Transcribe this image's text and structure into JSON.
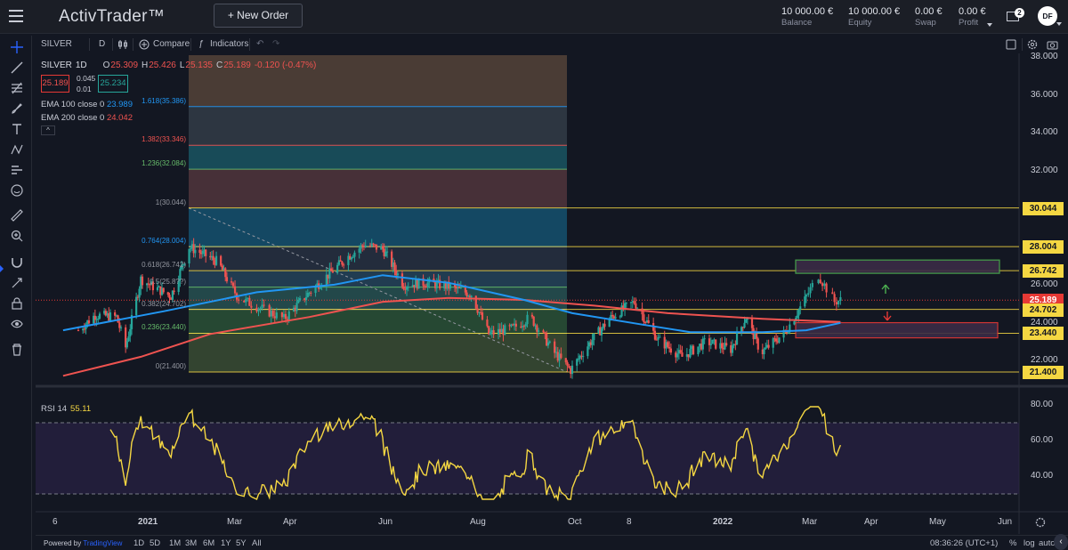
{
  "topbar": {
    "logo": "ActivTrader™",
    "new_order": "+ New Order",
    "balance_value": "10 000.00 €",
    "balance_label": "Balance",
    "equity_value": "10 000.00 €",
    "equity_label": "Equity",
    "swap_value": "0.00 €",
    "swap_label": "Swap",
    "profit_value": "0.00 €",
    "profit_label": "Profit",
    "mail_badge": "2",
    "avatar_initials": "DF"
  },
  "toolbar": {
    "symbol": "SILVER",
    "interval": "D",
    "compare_label": "Compare",
    "indicators_label": "Indicators"
  },
  "legend": {
    "symbol": "SILVER",
    "interval": "1D",
    "o_label": "O",
    "o": "25.309",
    "h_label": "H",
    "h": "25.426",
    "l_label": "L",
    "l": "25.135",
    "c_label": "C",
    "c": "25.189",
    "change": "-0.120 (-0.47%)",
    "sell_price": "25.189",
    "spread_top": "0.045",
    "spread_bottom": "0.01",
    "buy_price": "25.234",
    "ema100_label": "EMA 100 close 0",
    "ema100_value": "23.989",
    "ema200_label": "EMA 200 close 0",
    "ema200_value": "24.042",
    "collapse": "^"
  },
  "rsi": {
    "label": "RSI 14",
    "value": "55.11",
    "axis": [
      "80.00",
      "60.00",
      "40.00"
    ]
  },
  "fib_labels": [
    {
      "text": "1.618(35.386)",
      "color": "#2196f3",
      "price": 35.386
    },
    {
      "text": "1.382(33.346)",
      "color": "#ef5350",
      "price": 33.346
    },
    {
      "text": "1.236(32.084)",
      "color": "#66bb6a",
      "price": 32.084
    },
    {
      "text": "1(30.044)",
      "color": "#9598a1",
      "price": 30.044
    },
    {
      "text": "0.764(28.004)",
      "color": "#2196f3",
      "price": 28.004
    },
    {
      "text": "0.618(26.742)",
      "color": "#9598a1",
      "price": 26.742
    },
    {
      "text": "0.5(25.8??)",
      "color": "#9598a1",
      "price": 25.872
    },
    {
      "text": "0.382(24.702)",
      "color": "#9598a1",
      "price": 24.702
    },
    {
      "text": "0.236(23.440)",
      "color": "#66bb6a",
      "price": 23.44
    },
    {
      "text": "0(21.400)",
      "color": "#9598a1",
      "price": 21.4
    }
  ],
  "price_axis": [
    "38.000",
    "36.000",
    "34.000",
    "32.000",
    "26.000",
    "24.000",
    "22.000"
  ],
  "price_tags": [
    {
      "text": "30.044",
      "price": 30.044,
      "bg": "#f5d742",
      "fg": "#131722"
    },
    {
      "text": "28.004",
      "price": 28.004,
      "bg": "#f5d742",
      "fg": "#131722"
    },
    {
      "text": "26.742",
      "price": 26.742,
      "bg": "#f5d742",
      "fg": "#131722"
    },
    {
      "text": "25.189",
      "price": 25.189,
      "bg": "#e53935",
      "fg": "#ffffff"
    },
    {
      "text": "24.702",
      "price": 24.702,
      "bg": "#f5d742",
      "fg": "#131722"
    },
    {
      "text": "23.440",
      "price": 23.44,
      "bg": "#f5d742",
      "fg": "#131722"
    },
    {
      "text": "21.400",
      "price": 21.4,
      "bg": "#f5d742",
      "fg": "#131722"
    }
  ],
  "x_labels": [
    "6",
    "2021",
    "Mar",
    "Apr",
    "Jun",
    "Aug",
    "Oct",
    "8",
    "2022",
    "Mar",
    "Apr",
    "May",
    "Jun"
  ],
  "bottombar": {
    "powered_prefix": "Powered by ",
    "powered_brand": "TradingView",
    "ranges": [
      "1D",
      "5D",
      "1M",
      "3M",
      "6M",
      "1Y",
      "5Y",
      "All"
    ],
    "clock": "08:36:26 (UTC+1)",
    "pct": "%",
    "log": "log",
    "auto": "auto"
  },
  "chart_data": {
    "type": "candlestick",
    "ylim": [
      21.0,
      38.2
    ],
    "price_path_anchors": [
      {
        "date": "2020-11-20",
        "close": 23.6
      },
      {
        "date": "2020-12-01",
        "close": 24.4
      },
      {
        "date": "2020-12-15",
        "close": 24.3
      },
      {
        "date": "2020-12-21",
        "close": 22.7
      },
      {
        "date": "2020-12-31",
        "close": 26.3
      },
      {
        "date": "2021-01-08",
        "close": 25.9
      },
      {
        "date": "2021-01-20",
        "close": 25.4
      },
      {
        "date": "2021-02-01",
        "close": 28.0
      },
      {
        "date": "2021-02-20",
        "close": 27.2
      },
      {
        "date": "2021-03-05",
        "close": 25.3
      },
      {
        "date": "2021-03-30",
        "close": 24.2
      },
      {
        "date": "2021-04-15",
        "close": 25.6
      },
      {
        "date": "2021-05-10",
        "close": 27.5
      },
      {
        "date": "2021-05-20",
        "close": 28.1
      },
      {
        "date": "2021-06-01",
        "close": 27.9
      },
      {
        "date": "2021-06-15",
        "close": 26.0
      },
      {
        "date": "2021-06-30",
        "close": 26.1
      },
      {
        "date": "2021-07-15",
        "close": 25.9
      },
      {
        "date": "2021-07-30",
        "close": 25.5
      },
      {
        "date": "2021-08-10",
        "close": 23.4
      },
      {
        "date": "2021-08-25",
        "close": 23.7
      },
      {
        "date": "2021-09-05",
        "close": 24.3
      },
      {
        "date": "2021-09-20",
        "close": 22.4
      },
      {
        "date": "2021-09-30",
        "close": 21.5
      },
      {
        "date": "2021-10-10",
        "close": 22.7
      },
      {
        "date": "2021-10-25",
        "close": 24.2
      },
      {
        "date": "2021-11-10",
        "close": 25.1
      },
      {
        "date": "2021-11-25",
        "close": 23.1
      },
      {
        "date": "2021-12-10",
        "close": 22.2
      },
      {
        "date": "2021-12-25",
        "close": 23.0
      },
      {
        "date": "2022-01-10",
        "close": 22.6
      },
      {
        "date": "2022-01-20",
        "close": 24.3
      },
      {
        "date": "2022-01-30",
        "close": 22.4
      },
      {
        "date": "2022-02-15",
        "close": 23.5
      },
      {
        "date": "2022-02-28",
        "close": 25.2
      },
      {
        "date": "2022-03-07",
        "close": 26.5
      },
      {
        "date": "2022-03-15",
        "close": 25.1
      },
      {
        "date": "2022-03-18",
        "close": 25.19
      }
    ],
    "ema100_anchors": [
      {
        "date": "2020-11-10",
        "value": 23.6
      },
      {
        "date": "2021-01-15",
        "value": 24.6
      },
      {
        "date": "2021-03-15",
        "value": 25.6
      },
      {
        "date": "2021-05-01",
        "value": 26.0
      },
      {
        "date": "2021-06-01",
        "value": 26.5
      },
      {
        "date": "2021-07-15",
        "value": 26.1
      },
      {
        "date": "2021-09-01",
        "value": 25.2
      },
      {
        "date": "2021-10-01",
        "value": 24.5
      },
      {
        "date": "2021-11-15",
        "value": 23.9
      },
      {
        "date": "2021-12-15",
        "value": 23.5
      },
      {
        "date": "2022-01-31",
        "value": 23.5
      },
      {
        "date": "2022-03-01",
        "value": 23.6
      },
      {
        "date": "2022-03-18",
        "value": 23.99
      }
    ],
    "ema200_anchors": [
      {
        "date": "2020-11-10",
        "value": 21.2
      },
      {
        "date": "2020-12-31",
        "value": 22.2
      },
      {
        "date": "2021-02-15",
        "value": 23.4
      },
      {
        "date": "2021-04-15",
        "value": 24.3
      },
      {
        "date": "2021-06-01",
        "value": 25.1
      },
      {
        "date": "2021-07-15",
        "value": 25.3
      },
      {
        "date": "2021-09-01",
        "value": 25.2
      },
      {
        "date": "2021-10-15",
        "value": 24.9
      },
      {
        "date": "2021-12-01",
        "value": 24.5
      },
      {
        "date": "2022-01-31",
        "value": 24.2
      },
      {
        "date": "2022-03-18",
        "value": 24.04
      }
    ],
    "fib_levels": [
      {
        "ratio": 2.0,
        "price": 38.2,
        "fill": "#5d4a3c"
      },
      {
        "ratio": 1.618,
        "price": 35.386,
        "fill": "#37424c"
      },
      {
        "ratio": 1.382,
        "price": 33.346,
        "fill": "#1b5e6b"
      },
      {
        "ratio": 1.236,
        "price": 32.084,
        "fill": "#5a3940"
      },
      {
        "ratio": 1.0,
        "price": 30.044,
        "fill": "#155a7a"
      },
      {
        "ratio": 0.764,
        "price": 28.004,
        "fill": "#2a3446"
      },
      {
        "ratio": 0.618,
        "price": 26.742,
        "fill": "#274a62"
      },
      {
        "ratio": 0.5,
        "price": 25.872,
        "fill": "#2a5a58"
      },
      {
        "ratio": 0.382,
        "price": 24.702,
        "fill": "#2e5a3a"
      },
      {
        "ratio": 0.236,
        "price": 23.44,
        "fill": "#3f5436"
      },
      {
        "ratio": 0.0,
        "price": 21.4,
        "fill": "#5a2a30"
      }
    ],
    "rsi_range": [
      30,
      80
    ],
    "rsi_band": [
      30,
      70
    ]
  }
}
